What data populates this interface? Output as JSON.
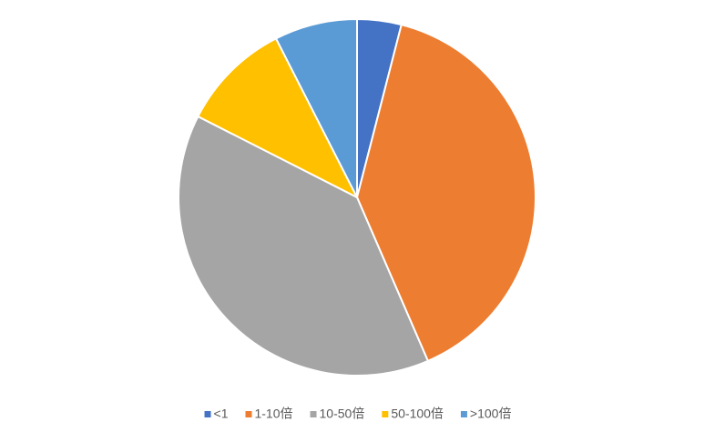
{
  "chart_data": {
    "type": "pie",
    "categories": [
      "<1",
      "1-10倍",
      "10-50倍",
      "50-100倍",
      ">100倍"
    ],
    "values": [
      4,
      39.5,
      39,
      10,
      7.5
    ],
    "colors": [
      "#4472c4",
      "#ed7d31",
      "#a5a5a5",
      "#ffc000",
      "#5b9bd5"
    ],
    "legend": "bottom"
  }
}
